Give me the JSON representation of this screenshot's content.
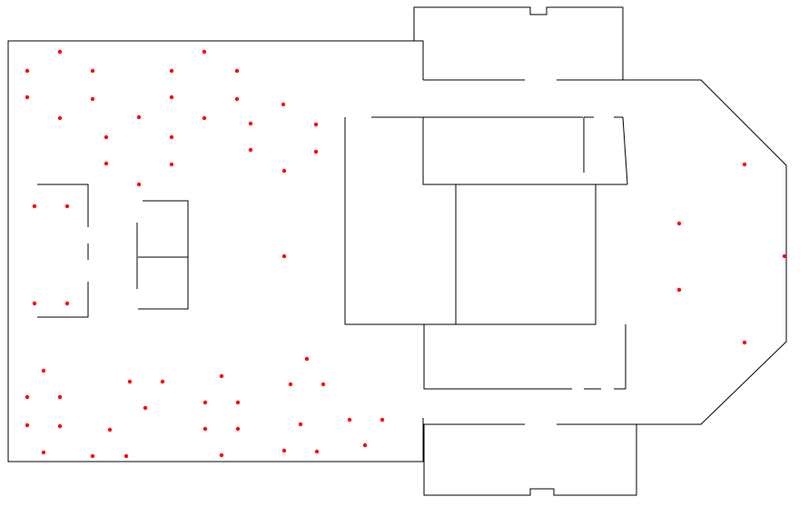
{
  "floor_plan": {
    "wall_color": "#000000",
    "marker_color": "#ff0000",
    "background": "#ffffff",
    "markers": [
      "seat",
      "seat",
      "seat",
      "seat",
      "seat",
      "seat",
      "seat",
      "seat",
      "seat",
      "seat",
      "seat",
      "seat",
      "seat",
      "seat",
      "seat",
      "seat",
      "seat",
      "seat",
      "seat",
      "seat",
      "seat",
      "seat",
      "seat",
      "seat",
      "seat",
      "seat",
      "seat",
      "seat",
      "seat",
      "seat",
      "seat",
      "seat",
      "seat",
      "seat",
      "seat",
      "seat",
      "seat",
      "seat",
      "seat",
      "seat",
      "seat",
      "seat",
      "seat",
      "seat",
      "seat",
      "seat",
      "seat",
      "seat",
      "seat",
      "seat",
      "seat",
      "seat",
      "seat",
      "seat",
      "seat",
      "seat",
      "seat",
      "seat",
      "seat",
      "seat",
      "seat",
      "seat",
      "seat",
      "seat",
      "seat",
      "seat"
    ]
  }
}
